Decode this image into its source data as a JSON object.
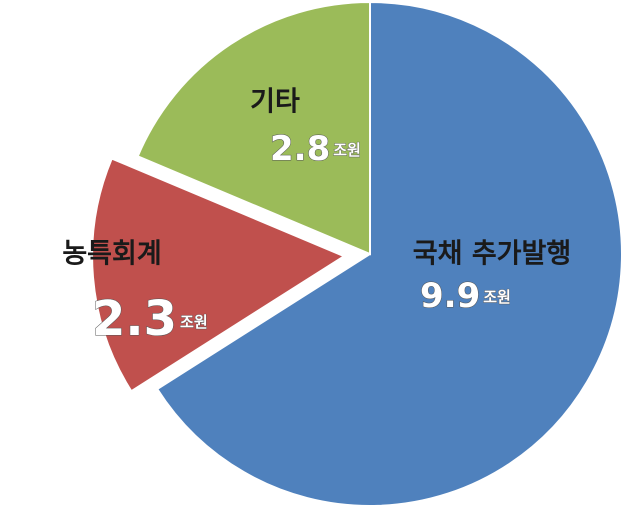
{
  "chart_data": {
    "type": "pie",
    "unit": "조원",
    "categories": [
      "국채 추가발행",
      "농특회계",
      "기타"
    ],
    "values": [
      9.9,
      2.3,
      2.8
    ],
    "colors": [
      "#4f81bd",
      "#c0504d",
      "#9bbb59"
    ],
    "exploded": [
      false,
      true,
      false
    ]
  }
}
